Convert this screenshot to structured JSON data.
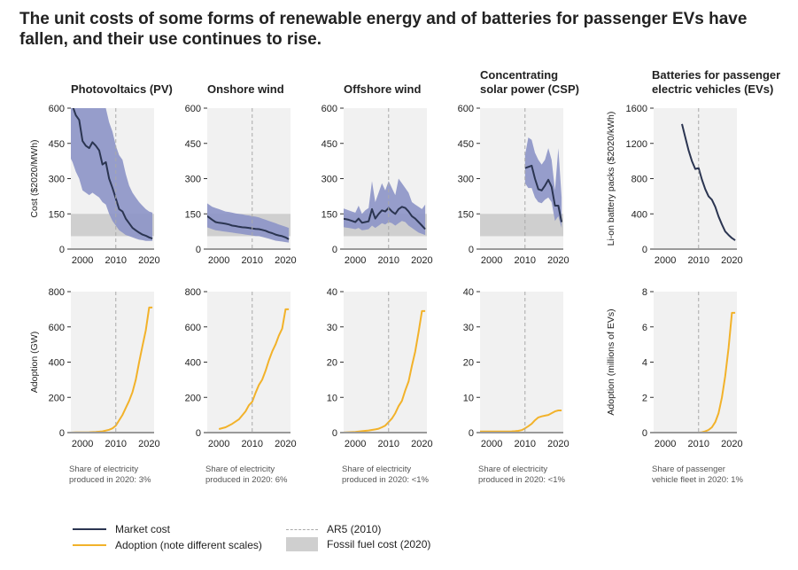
{
  "title": "The unit costs of some forms of renewable energy and of batteries for passenger EVs have fallen, and their use continues to rise.",
  "colors": {
    "market_cost": "#2b3551",
    "band": "#8c94c7",
    "adoption": "#f2b22a",
    "fossil": "#cfcfcf",
    "plot_bg": "#f1f1f1",
    "ar5": "#aaaaaa"
  },
  "legend": {
    "market_cost": "Market cost",
    "adoption": "Adoption (note different scales)",
    "ar5": "AR5 (2010)",
    "fossil": "Fossil fuel cost (2020)"
  },
  "panels": [
    {
      "title_lines": [
        "Photovoltaics (PV)"
      ],
      "note_lines": [
        "Share of electricity",
        "produced in 2020: 3%"
      ]
    },
    {
      "title_lines": [
        "Onshore wind"
      ],
      "note_lines": [
        "Share of electricity",
        "produced in 2020: 6%"
      ]
    },
    {
      "title_lines": [
        "Offshore wind"
      ],
      "note_lines": [
        "Share of electricity",
        "produced in 2020: <1%"
      ]
    },
    {
      "title_lines": [
        "Concentrating",
        "solar power (CSP)"
      ],
      "note_lines": [
        "Share of electricity",
        "produced in 2020: <1%"
      ]
    },
    {
      "title_lines": [
        "Batteries for passenger",
        "electric vehicles (EVs)"
      ],
      "note_lines": [
        "Share of passenger",
        "vehicle fleet in 2020: 1%"
      ]
    }
  ],
  "chart_data": [
    {
      "type": "line",
      "panel": "Photovoltaics (PV)",
      "role": "cost",
      "ylabel": "Cost ($2020/MWh)",
      "ylim": [
        0,
        600
      ],
      "yticks": [
        0,
        150,
        300,
        450,
        600
      ],
      "xlim": [
        1996.5,
        2021.5
      ],
      "xticks": [
        2000,
        2010,
        2020
      ],
      "fossil_band": [
        55,
        150
      ],
      "ar5_year": 2010,
      "series": [
        {
          "role": "market_cost",
          "x": [
            1996,
            1997,
            1998,
            1999,
            2000,
            2001,
            2002,
            2003,
            2004,
            2005,
            2006,
            2007,
            2008,
            2009,
            2010,
            2011,
            2012,
            2013,
            2014,
            2015,
            2016,
            2017,
            2018,
            2019,
            2020,
            2021
          ],
          "values": [
            680,
            610,
            570,
            550,
            460,
            440,
            430,
            455,
            440,
            420,
            360,
            370,
            300,
            260,
            215,
            170,
            160,
            130,
            110,
            90,
            80,
            70,
            62,
            57,
            50,
            45
          ],
          "low": [
            400,
            370,
            330,
            300,
            250,
            240,
            230,
            240,
            230,
            220,
            200,
            190,
            150,
            120,
            100,
            80,
            70,
            60,
            55,
            50,
            45,
            40,
            38,
            35,
            35,
            35
          ],
          "high": [
            900,
            880,
            860,
            820,
            750,
            720,
            700,
            690,
            680,
            660,
            620,
            600,
            540,
            500,
            440,
            400,
            380,
            320,
            270,
            240,
            220,
            200,
            185,
            170,
            160,
            155
          ]
        }
      ]
    },
    {
      "type": "line",
      "panel": "Onshore wind",
      "role": "cost",
      "ylabel": "",
      "ylim": [
        0,
        600
      ],
      "yticks": [
        0,
        150,
        300,
        450,
        600
      ],
      "xlim": [
        1996.5,
        2021.5
      ],
      "xticks": [
        2000,
        2010,
        2020
      ],
      "fossil_band": [
        55,
        150
      ],
      "ar5_year": 2010,
      "series": [
        {
          "role": "market_cost",
          "x": [
            1996,
            1997,
            1998,
            1999,
            2000,
            2001,
            2002,
            2003,
            2004,
            2005,
            2006,
            2007,
            2008,
            2009,
            2010,
            2011,
            2012,
            2013,
            2014,
            2015,
            2016,
            2017,
            2018,
            2019,
            2020,
            2021
          ],
          "values": [
            145,
            135,
            125,
            115,
            112,
            110,
            108,
            105,
            100,
            98,
            95,
            93,
            92,
            90,
            88,
            86,
            85,
            82,
            78,
            72,
            68,
            62,
            58,
            55,
            50,
            42
          ],
          "low": [
            95,
            90,
            85,
            80,
            78,
            76,
            74,
            72,
            70,
            68,
            66,
            64,
            62,
            60,
            58,
            56,
            55,
            52,
            48,
            44,
            40,
            36,
            34,
            32,
            30,
            28
          ],
          "high": [
            200,
            190,
            180,
            175,
            170,
            165,
            160,
            158,
            155,
            152,
            150,
            148,
            145,
            143,
            140,
            138,
            135,
            130,
            125,
            120,
            115,
            110,
            105,
            100,
            95,
            90
          ]
        }
      ]
    },
    {
      "type": "line",
      "panel": "Offshore wind",
      "role": "cost",
      "ylabel": "",
      "ylim": [
        0,
        600
      ],
      "yticks": [
        0,
        150,
        300,
        450,
        600
      ],
      "xlim": [
        1996.5,
        2021.5
      ],
      "xticks": [
        2000,
        2010,
        2020
      ],
      "fossil_band": [
        55,
        150
      ],
      "ar5_year": 2010,
      "series": [
        {
          "role": "market_cost",
          "x": [
            1996,
            1997,
            1998,
            1999,
            2000,
            2001,
            2002,
            2003,
            2004,
            2005,
            2006,
            2007,
            2008,
            2009,
            2010,
            2011,
            2012,
            2013,
            2014,
            2015,
            2016,
            2017,
            2018,
            2019,
            2020,
            2021
          ],
          "values": [
            130,
            128,
            125,
            120,
            115,
            130,
            112,
            115,
            118,
            170,
            130,
            150,
            165,
            160,
            175,
            160,
            150,
            170,
            180,
            175,
            160,
            140,
            130,
            115,
            100,
            85
          ],
          "low": [
            95,
            92,
            90,
            88,
            85,
            90,
            80,
            82,
            85,
            100,
            90,
            100,
            110,
            105,
            115,
            110,
            100,
            110,
            120,
            115,
            100,
            90,
            80,
            70,
            65,
            60
          ],
          "high": [
            175,
            170,
            165,
            160,
            155,
            185,
            150,
            165,
            175,
            290,
            200,
            240,
            280,
            250,
            290,
            260,
            230,
            300,
            280,
            260,
            240,
            200,
            190,
            180,
            170,
            190
          ]
        }
      ]
    },
    {
      "type": "line",
      "panel": "Concentrating solar power (CSP)",
      "role": "cost",
      "ylabel": "",
      "ylim": [
        0,
        600
      ],
      "yticks": [
        0,
        150,
        300,
        450,
        600
      ],
      "xlim": [
        1996.5,
        2021.5
      ],
      "xticks": [
        2000,
        2010,
        2020
      ],
      "fossil_band": [
        55,
        150
      ],
      "ar5_year": 2010,
      "series": [
        {
          "role": "market_cost",
          "x": [
            2010,
            2011,
            2012,
            2013,
            2014,
            2015,
            2016,
            2017,
            2018,
            2019,
            2020,
            2021
          ],
          "values": [
            345,
            350,
            355,
            300,
            255,
            250,
            270,
            295,
            265,
            185,
            185,
            115
          ],
          "low": [
            280,
            260,
            260,
            220,
            200,
            195,
            210,
            220,
            200,
            120,
            140,
            90
          ],
          "high": [
            400,
            475,
            465,
            410,
            380,
            360,
            380,
            430,
            380,
            250,
            430,
            220
          ]
        }
      ]
    },
    {
      "type": "line",
      "panel": "Batteries for passenger electric vehicles (EVs)",
      "role": "cost",
      "ylabel": "Li-on battery packs ($2020/kWh)",
      "ylim": [
        0,
        1600
      ],
      "yticks": [
        0,
        400,
        800,
        1200,
        1600
      ],
      "xlim": [
        1996.5,
        2021.5
      ],
      "xticks": [
        2000,
        2010,
        2020
      ],
      "ar5_year": 2010,
      "series": [
        {
          "role": "market_cost",
          "x": [
            2005,
            2006,
            2007,
            2008,
            2009,
            2010,
            2011,
            2012,
            2013,
            2014,
            2015,
            2016,
            2017,
            2018,
            2019,
            2020,
            2021
          ],
          "values": [
            1420,
            1270,
            1120,
            1000,
            910,
            920,
            790,
            680,
            600,
            560,
            480,
            370,
            280,
            200,
            160,
            125,
            100
          ]
        }
      ]
    },
    {
      "type": "line",
      "panel": "Photovoltaics (PV)",
      "role": "adoption",
      "ylabel": "Adoption (GW)",
      "ylim": [
        0,
        800
      ],
      "yticks": [
        0,
        200,
        400,
        600,
        800
      ],
      "xlim": [
        1996.5,
        2021.5
      ],
      "xticks": [
        2000,
        2010,
        2020
      ],
      "ar5_year": 2010,
      "series": [
        {
          "role": "adoption",
          "x": [
            1996,
            1998,
            2000,
            2002,
            2004,
            2006,
            2008,
            2009,
            2010,
            2011,
            2012,
            2013,
            2014,
            2015,
            2016,
            2017,
            2018,
            2019,
            2020,
            2021
          ],
          "values": [
            0,
            1,
            1,
            2,
            4,
            7,
            16,
            24,
            40,
            70,
            100,
            140,
            180,
            230,
            300,
            400,
            490,
            580,
            710,
            710
          ]
        }
      ]
    },
    {
      "type": "line",
      "panel": "Onshore wind",
      "role": "adoption",
      "ylabel": "",
      "ylim": [
        0,
        800
      ],
      "yticks": [
        0,
        200,
        400,
        600,
        800
      ],
      "xlim": [
        1996.5,
        2021.5
      ],
      "xticks": [
        2000,
        2010,
        2020
      ],
      "ar5_year": 2010,
      "series": [
        {
          "role": "adoption",
          "x": [
            2000,
            2002,
            2004,
            2006,
            2008,
            2009,
            2010,
            2011,
            2012,
            2013,
            2014,
            2015,
            2016,
            2017,
            2018,
            2019,
            2020,
            2021
          ],
          "values": [
            20,
            30,
            50,
            75,
            120,
            155,
            175,
            225,
            270,
            300,
            350,
            410,
            460,
            500,
            550,
            590,
            700,
            700
          ]
        }
      ]
    },
    {
      "type": "line",
      "panel": "Offshore wind",
      "role": "adoption",
      "ylabel": "",
      "ylim": [
        0,
        40
      ],
      "yticks": [
        0,
        10,
        20,
        30,
        40
      ],
      "xlim": [
        1996.5,
        2021.5
      ],
      "xticks": [
        2000,
        2010,
        2020
      ],
      "ar5_year": 2010,
      "series": [
        {
          "role": "adoption",
          "x": [
            1996,
            1998,
            2000,
            2002,
            2004,
            2006,
            2007,
            2008,
            2009,
            2010,
            2011,
            2012,
            2013,
            2014,
            2015,
            2016,
            2017,
            2018,
            2019,
            2020,
            2021
          ],
          "values": [
            0,
            0.1,
            0.2,
            0.4,
            0.6,
            0.9,
            1.1,
            1.5,
            2,
            3,
            4,
            5.5,
            7.5,
            9,
            12,
            14.5,
            19,
            23,
            28.5,
            34.5,
            34.5
          ]
        }
      ]
    },
    {
      "type": "line",
      "panel": "Concentrating solar power (CSP)",
      "role": "adoption",
      "ylabel": "",
      "ylim": [
        0,
        40
      ],
      "yticks": [
        0,
        10,
        20,
        30,
        40
      ],
      "xlim": [
        1996.5,
        2021.5
      ],
      "xticks": [
        2000,
        2010,
        2020
      ],
      "ar5_year": 2010,
      "series": [
        {
          "role": "adoption",
          "x": [
            1996,
            2000,
            2004,
            2006,
            2007,
            2008,
            2009,
            2010,
            2011,
            2012,
            2013,
            2014,
            2015,
            2016,
            2017,
            2018,
            2019,
            2020,
            2021
          ],
          "values": [
            0.3,
            0.3,
            0.3,
            0.35,
            0.4,
            0.5,
            0.7,
            1.2,
            1.8,
            2.5,
            3.5,
            4.3,
            4.6,
            4.8,
            5,
            5.5,
            6,
            6.3,
            6.3
          ]
        }
      ]
    },
    {
      "type": "line",
      "panel": "Batteries for passenger electric vehicles (EVs)",
      "role": "adoption",
      "ylabel": "Adoption (millions of EVs)",
      "ylim": [
        0,
        8
      ],
      "yticks": [
        0,
        2,
        4,
        6,
        8
      ],
      "xlim": [
        1996.5,
        2021.5
      ],
      "xticks": [
        2000,
        2010,
        2020
      ],
      "ar5_year": 2010,
      "series": [
        {
          "role": "adoption",
          "x": [
            2010,
            2011,
            2012,
            2013,
            2014,
            2015,
            2016,
            2017,
            2018,
            2019,
            2020,
            2021
          ],
          "values": [
            0,
            0.02,
            0.07,
            0.15,
            0.3,
            0.6,
            1.1,
            2,
            3.2,
            4.8,
            6.8,
            6.8
          ]
        }
      ]
    }
  ]
}
